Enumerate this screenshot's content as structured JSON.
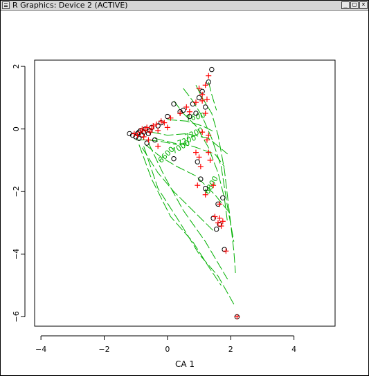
{
  "window": {
    "title": "R Graphics: Device 2 (ACTIVE)",
    "buttons": [
      "_",
      "□",
      "×"
    ]
  },
  "chart_data": {
    "type": "scatter",
    "title": "",
    "xlabel": "CA 1",
    "ylabel": "",
    "xlim": [
      -4.2,
      5.3
    ],
    "ylim": [
      -6.3,
      2.2
    ],
    "x_ticks": [
      -4,
      -2,
      0,
      2,
      4
    ],
    "y_ticks": [
      2,
      0,
      -2,
      -4,
      -6
    ],
    "grid": false,
    "contour_labels": [
      "7200",
      "7200",
      "7600",
      "7000",
      "6800",
      "6600"
    ],
    "contour_color": "#00b000",
    "series": [
      {
        "marker": "circle",
        "color": "#000000",
        "points": [
          [
            -1.1,
            -0.2
          ],
          [
            -1.0,
            -0.25
          ],
          [
            -0.95,
            -0.15
          ],
          [
            -0.9,
            -0.1
          ],
          [
            -0.85,
            -0.05
          ],
          [
            -0.8,
            -0.2
          ],
          [
            -0.75,
            -0.1
          ],
          [
            -0.7,
            0.0
          ],
          [
            -0.6,
            -0.15
          ],
          [
            -0.55,
            -0.05
          ],
          [
            -0.5,
            0.05
          ],
          [
            -0.4,
            -0.35
          ],
          [
            -0.3,
            0.1
          ],
          [
            -0.2,
            0.2
          ],
          [
            0.0,
            0.4
          ],
          [
            0.2,
            0.8
          ],
          [
            0.5,
            0.6
          ],
          [
            0.8,
            0.8
          ],
          [
            1.0,
            1.0
          ],
          [
            1.1,
            1.2
          ],
          [
            1.3,
            1.5
          ],
          [
            1.4,
            1.9
          ],
          [
            1.2,
            0.7
          ],
          [
            0.9,
            0.5
          ],
          [
            0.7,
            0.4
          ],
          [
            -0.65,
            -0.45
          ],
          [
            0.2,
            -0.95
          ],
          [
            0.95,
            -1.05
          ],
          [
            1.45,
            -2.85
          ],
          [
            1.55,
            -3.2
          ],
          [
            1.65,
            -3.05
          ],
          [
            1.8,
            -3.85
          ],
          [
            1.75,
            -2.2
          ],
          [
            1.6,
            -2.4
          ],
          [
            1.2,
            -1.9
          ],
          [
            1.05,
            -1.6
          ],
          [
            2.2,
            -6.0
          ],
          [
            -0.9,
            -0.3
          ],
          [
            -1.2,
            -0.15
          ],
          [
            0.4,
            0.55
          ]
        ]
      },
      {
        "marker": "plus",
        "color": "#ff0000",
        "points": [
          [
            -1.05,
            -0.15
          ],
          [
            -0.95,
            -0.2
          ],
          [
            -0.85,
            -0.1
          ],
          [
            -0.8,
            0.0
          ],
          [
            -0.7,
            -0.05
          ],
          [
            -0.65,
            0.05
          ],
          [
            -0.55,
            -0.1
          ],
          [
            -0.5,
            0.0
          ],
          [
            -0.45,
            0.1
          ],
          [
            -0.35,
            0.15
          ],
          [
            -0.3,
            -0.05
          ],
          [
            -0.2,
            0.25
          ],
          [
            -0.1,
            0.2
          ],
          [
            0.1,
            0.35
          ],
          [
            0.4,
            0.5
          ],
          [
            0.6,
            0.7
          ],
          [
            0.7,
            0.55
          ],
          [
            0.9,
            0.85
          ],
          [
            1.0,
            1.3
          ],
          [
            1.1,
            1.1
          ],
          [
            1.2,
            1.4
          ],
          [
            1.3,
            1.7
          ],
          [
            1.25,
            0.95
          ],
          [
            1.1,
            0.9
          ],
          [
            1.2,
            0.5
          ],
          [
            1.1,
            -0.1
          ],
          [
            1.3,
            -0.2
          ],
          [
            1.25,
            -0.35
          ],
          [
            0.9,
            -0.75
          ],
          [
            1.0,
            -0.9
          ],
          [
            1.3,
            -0.75
          ],
          [
            1.35,
            -1.0
          ],
          [
            1.05,
            -1.2
          ],
          [
            0.95,
            -1.8
          ],
          [
            1.45,
            -1.8
          ],
          [
            1.2,
            -2.1
          ],
          [
            1.65,
            -2.4
          ],
          [
            1.5,
            -2.8
          ],
          [
            1.65,
            -2.85
          ],
          [
            1.75,
            -2.95
          ],
          [
            1.6,
            -3.0
          ],
          [
            1.7,
            -3.1
          ],
          [
            1.85,
            -3.9
          ],
          [
            2.2,
            -6.0
          ],
          [
            -0.3,
            -0.55
          ],
          [
            -0.6,
            -0.35
          ],
          [
            0.0,
            0.05
          ],
          [
            -0.75,
            -0.25
          ]
        ]
      }
    ]
  }
}
